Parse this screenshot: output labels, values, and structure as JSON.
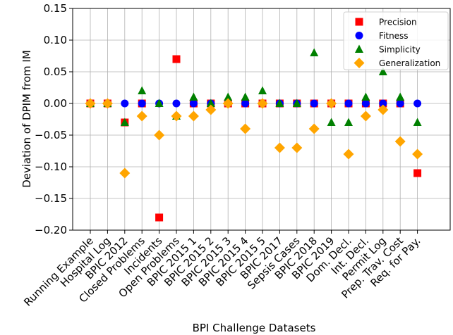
{
  "chart_data": {
    "type": "scatter",
    "xlabel": "BPI Challenge Datasets",
    "ylabel": "Deviation of DPIM from IM",
    "ylim": [
      -0.2,
      0.15
    ],
    "yticks": [
      "0.15",
      "0.10",
      "0.05",
      "0.00",
      "−0.05",
      "−0.10",
      "−0.15",
      "−0.20"
    ],
    "grid": true,
    "legend_position": "top-right",
    "categories": [
      "Running Example",
      "Hospital Log",
      "BPIC 2012",
      "Closed Problems",
      "Incidents",
      "Open Problems",
      "BPIC 2015 1",
      "BPIC 2015 2",
      "BPIC 2015 3",
      "BPIC 2015 4",
      "BPIC 2015 5",
      "BPIC 2017",
      "Sepsis Cases",
      "BPIC 2018",
      "BPIC 2019",
      "Dom. Decl.",
      "Int. Decl.",
      "Permit Log",
      "Prep. Trav. Cost",
      "Req. for Pay."
    ],
    "series": [
      {
        "name": "Precision",
        "marker": "square",
        "color": "#ff0000",
        "values": [
          0.0,
          0.0,
          -0.03,
          0.0,
          -0.18,
          0.07,
          0.0,
          0.0,
          0.0,
          0.0,
          0.0,
          0.0,
          0.0,
          0.0,
          0.0,
          0.0,
          0.0,
          0.0,
          0.0,
          -0.11
        ]
      },
      {
        "name": "Fitness",
        "marker": "circle",
        "color": "#0000ff",
        "values": [
          0.0,
          0.0,
          0.0,
          0.0,
          0.0,
          0.0,
          0.0,
          0.0,
          0.0,
          0.0,
          0.0,
          0.0,
          0.0,
          0.0,
          0.0,
          0.0,
          0.0,
          0.0,
          0.0,
          0.0
        ]
      },
      {
        "name": "Simplicity",
        "marker": "triangle",
        "color": "#008000",
        "values": [
          0.0,
          0.0,
          -0.03,
          0.02,
          0.0,
          -0.02,
          0.01,
          0.0,
          0.01,
          0.01,
          0.02,
          0.0,
          0.0,
          0.08,
          -0.03,
          -0.03,
          0.01,
          0.05,
          0.01,
          -0.03
        ]
      },
      {
        "name": "Generalization",
        "marker": "diamond",
        "color": "#ffa500",
        "values": [
          0.0,
          0.0,
          -0.11,
          -0.02,
          -0.05,
          -0.02,
          -0.02,
          -0.01,
          0.0,
          -0.04,
          0.0,
          -0.07,
          -0.07,
          -0.04,
          0.0,
          -0.08,
          -0.02,
          -0.01,
          -0.06,
          -0.08
        ]
      }
    ]
  }
}
